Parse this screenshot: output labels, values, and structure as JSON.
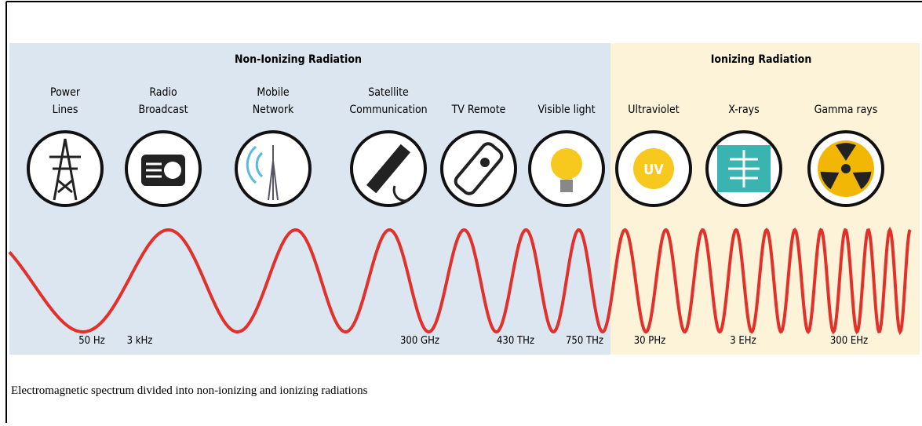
{
  "sections": [
    {
      "title": "Non-Ionizing Radiation"
    },
    {
      "title": "Ionizing Radiation"
    }
  ],
  "sources": [
    {
      "lines": [
        "Power",
        "Lines"
      ]
    },
    {
      "lines": [
        "Radio",
        "Broadcast"
      ]
    },
    {
      "lines": [
        "Mobile",
        "Network"
      ]
    },
    {
      "lines": [
        "Satellite",
        "Communication"
      ]
    },
    {
      "lines": [
        "TV Remote"
      ]
    },
    {
      "lines": [
        "Visible light"
      ]
    },
    {
      "lines": [
        "Ultraviolet"
      ],
      "icon_text": "UV"
    },
    {
      "lines": [
        "X-rays"
      ]
    },
    {
      "lines": [
        "Gamma rays"
      ]
    }
  ],
  "frequencies": [
    "50 Hz",
    "3 kHz",
    "300 GHz",
    "430 THz",
    "750 THz",
    "30 PHz",
    "3 EHz",
    "300 EHz"
  ],
  "caption": "Electromagnetic spectrum divided into non-ionizing and ionizing radiations"
}
